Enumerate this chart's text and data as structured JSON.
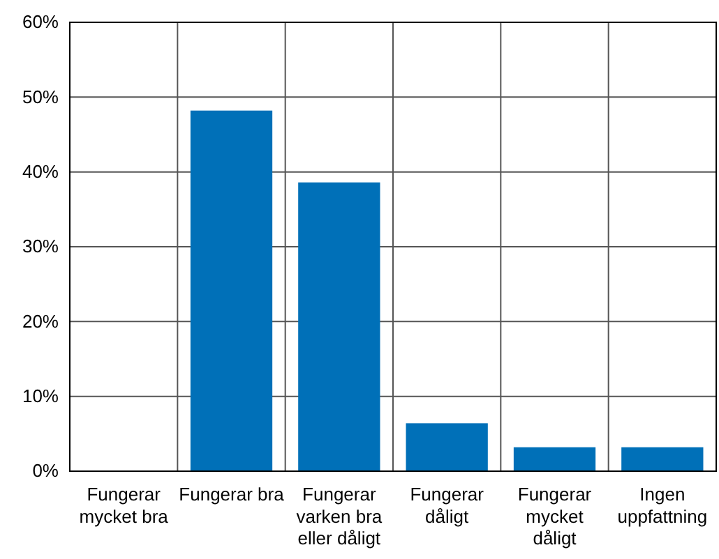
{
  "chart_data": {
    "type": "bar",
    "categories": [
      "Fungerar mycket bra",
      "Fungerar bra",
      "Fungerar varken bra eller dåligt",
      "Fungerar dåligt",
      "Fungerar mycket dåligt",
      "Ingen uppfattning"
    ],
    "values": [
      0,
      48.2,
      38.6,
      6.4,
      3.2,
      3.2
    ],
    "color": "#0070b8",
    "ylim": [
      0,
      60
    ],
    "yticks": [
      {
        "value": 0,
        "label": "0%"
      },
      {
        "value": 10,
        "label": "10%"
      },
      {
        "value": 20,
        "label": "20%"
      },
      {
        "value": 30,
        "label": "30%"
      },
      {
        "value": 40,
        "label": "40%"
      },
      {
        "value": 50,
        "label": "50%"
      },
      {
        "value": 60,
        "label": "60%"
      }
    ],
    "grid": true
  }
}
